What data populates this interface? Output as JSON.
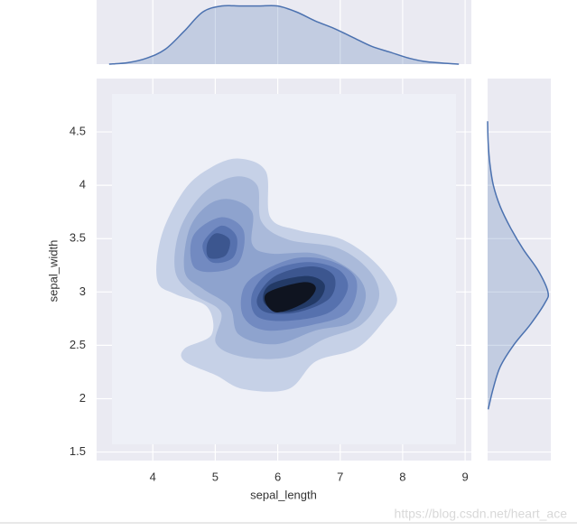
{
  "chart_data": {
    "type": "kde_joint",
    "xlabel": "sepal_length",
    "ylabel": "sepal_width",
    "xlim": [
      3.1,
      9.1
    ],
    "ylim": [
      1.42,
      5.0
    ],
    "xticks": [
      4,
      5,
      6,
      7,
      8,
      9
    ],
    "yticks": [
      1.5,
      2.0,
      2.5,
      3.0,
      3.5,
      4.0,
      4.5
    ],
    "grid": true,
    "contours": [
      {
        "color": "#c6d1e7",
        "polygons": [
          {
            "x": [
              5.38,
              5.81,
              5.88,
              6.32,
              7.04,
              7.62,
              7.91,
              7.7,
              7.26,
              6.61,
              6.17,
              5.45,
              5.01,
              4.51,
              4.51,
              4.94,
              4.87,
              4.36,
              4.07,
              4.14,
              4.51,
              4.94
            ],
            "y": [
              4.25,
              4.13,
              3.7,
              3.58,
              3.49,
              3.24,
              2.94,
              2.73,
              2.47,
              2.35,
              2.09,
              2.09,
              2.22,
              2.35,
              2.47,
              2.6,
              2.86,
              2.98,
              3.11,
              3.53,
              3.96,
              4.17
            ]
          }
        ]
      },
      {
        "color": "#aabada",
        "polygons": [
          {
            "x": [
              5.3,
              5.67,
              5.74,
              6.17,
              6.97,
              7.48,
              7.62,
              7.33,
              6.75,
              6.17,
              5.45,
              5.01,
              5.09,
              4.65,
              4.36,
              4.43,
              4.8
            ],
            "y": [
              4.08,
              4.0,
              3.66,
              3.49,
              3.41,
              3.19,
              2.94,
              2.69,
              2.56,
              2.39,
              2.39,
              2.52,
              2.81,
              2.98,
              3.19,
              3.58,
              3.92
            ]
          }
        ]
      },
      {
        "color": "#8ea3ce",
        "polygons": [
          {
            "x": [
              5.23,
              5.59,
              5.59,
              5.88,
              6.61,
              7.2,
              7.41,
              7.2,
              6.61,
              5.96,
              5.38,
              5.23,
              4.8,
              4.51,
              4.58,
              4.87
            ],
            "y": [
              3.87,
              3.75,
              3.45,
              3.36,
              3.36,
              3.19,
              2.97,
              2.72,
              2.64,
              2.51,
              2.6,
              2.86,
              3.03,
              3.19,
              3.58,
              3.81
            ]
          }
        ]
      },
      {
        "color": "#728ac1",
        "polygons": [
          {
            "x": [
              5.09,
              5.45,
              5.38,
              5.01,
              4.65,
              4.65
            ],
            "y": [
              3.7,
              3.58,
              3.28,
              3.19,
              3.24,
              3.53
            ]
          },
          {
            "x": [
              5.74,
              6.32,
              6.9,
              7.26,
              7.12,
              6.54,
              5.81,
              5.45,
              5.45
            ],
            "y": [
              3.19,
              3.32,
              3.28,
              3.11,
              2.81,
              2.69,
              2.64,
              2.77,
              3.03
            ]
          }
        ]
      },
      {
        "color": "#5671ae",
        "polygons": [
          {
            "x": [
              5.09,
              5.34,
              5.28,
              4.94,
              4.8
            ],
            "y": [
              3.62,
              3.52,
              3.32,
              3.28,
              3.45
            ]
          },
          {
            "x": [
              5.88,
              6.46,
              6.97,
              7.12,
              6.83,
              6.17,
              5.67,
              5.59
            ],
            "y": [
              3.19,
              3.28,
              3.21,
              3.03,
              2.81,
              2.73,
              2.77,
              2.98
            ]
          }
        ]
      },
      {
        "color": "#3c568f",
        "polygons": [
          {
            "x": [
              5.01,
              5.23,
              5.16,
              4.9,
              4.87
            ],
            "y": [
              3.55,
              3.49,
              3.34,
              3.32,
              3.45
            ]
          },
          {
            "x": [
              5.96,
              6.54,
              6.9,
              6.83,
              6.32,
              5.81,
              5.67
            ],
            "y": [
              3.15,
              3.24,
              3.15,
              2.94,
              2.81,
              2.81,
              2.94
            ]
          }
        ]
      },
      {
        "color": "#233a66",
        "polygons": [
          {
            "x": [
              5.88,
              6.46,
              6.75,
              6.61,
              6.1,
              5.78
            ],
            "y": [
              3.07,
              3.15,
              3.07,
              2.9,
              2.81,
              2.9
            ]
          }
        ]
      },
      {
        "color": "#0f1420",
        "polygons": [
          {
            "x": [
              5.81,
              6.39,
              6.61,
              6.43,
              5.96
            ],
            "y": [
              2.98,
              3.09,
              3.04,
              2.9,
              2.81
            ]
          }
        ]
      }
    ],
    "marginal_x": {
      "color": "#4c72b0",
      "ylim": [
        0,
        0.4
      ],
      "x": [
        3.3,
        3.6,
        3.9,
        4.2,
        4.5,
        4.8,
        5.1,
        5.4,
        5.7,
        6.0,
        6.3,
        6.6,
        6.9,
        7.2,
        7.5,
        7.8,
        8.1,
        8.4,
        8.9
      ],
      "values": [
        0.0,
        0.01,
        0.04,
        0.1,
        0.22,
        0.35,
        0.39,
        0.39,
        0.39,
        0.39,
        0.35,
        0.29,
        0.24,
        0.18,
        0.12,
        0.08,
        0.04,
        0.015,
        0.0
      ]
    },
    "marginal_y": {
      "color": "#4c72b0",
      "xlim": [
        0,
        1.1
      ],
      "y": [
        1.9,
        2.1,
        2.3,
        2.5,
        2.7,
        2.9,
        3.0,
        3.2,
        3.4,
        3.6,
        3.8,
        4.0,
        4.2,
        4.4,
        4.6
      ],
      "values": [
        0.01,
        0.1,
        0.22,
        0.45,
        0.75,
        1.0,
        1.05,
        0.88,
        0.62,
        0.4,
        0.22,
        0.1,
        0.04,
        0.01,
        0.0
      ]
    },
    "watermark": "https://blog.csdn.net/heart_ace"
  }
}
